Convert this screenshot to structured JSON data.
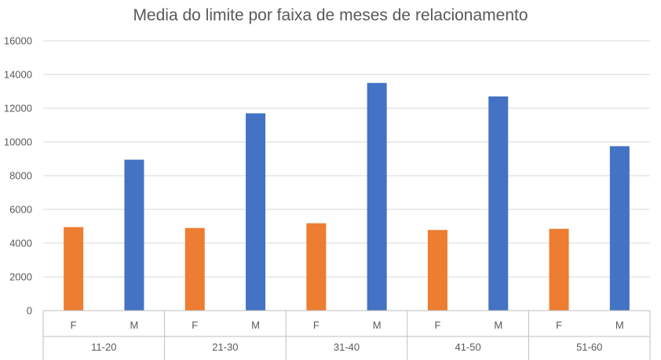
{
  "chart_data": {
    "type": "bar",
    "title": "Media do limite por faixa de meses de relacionamento",
    "xlabel": "",
    "ylabel": "",
    "ylim": [
      0,
      16000
    ],
    "yticks": [
      0,
      2000,
      4000,
      6000,
      8000,
      10000,
      12000,
      14000,
      16000
    ],
    "grid": true,
    "groups": [
      {
        "label": "11-20",
        "bars": [
          {
            "label": "F",
            "value": 4950,
            "color": "#ED7D31"
          },
          {
            "label": "M",
            "value": 8950,
            "color": "#4472C4"
          }
        ]
      },
      {
        "label": "21-30",
        "bars": [
          {
            "label": "F",
            "value": 4900,
            "color": "#ED7D31"
          },
          {
            "label": "M",
            "value": 11700,
            "color": "#4472C4"
          }
        ]
      },
      {
        "label": "31-40",
        "bars": [
          {
            "label": "F",
            "value": 5180,
            "color": "#ED7D31"
          },
          {
            "label": "M",
            "value": 13500,
            "color": "#4472C4"
          }
        ]
      },
      {
        "label": "41-50",
        "bars": [
          {
            "label": "F",
            "value": 4780,
            "color": "#ED7D31"
          },
          {
            "label": "M",
            "value": 12700,
            "color": "#4472C4"
          }
        ]
      },
      {
        "label": "51-60",
        "bars": [
          {
            "label": "F",
            "value": 4850,
            "color": "#ED7D31"
          },
          {
            "label": "M",
            "value": 9750,
            "color": "#4472C4"
          }
        ]
      }
    ]
  }
}
